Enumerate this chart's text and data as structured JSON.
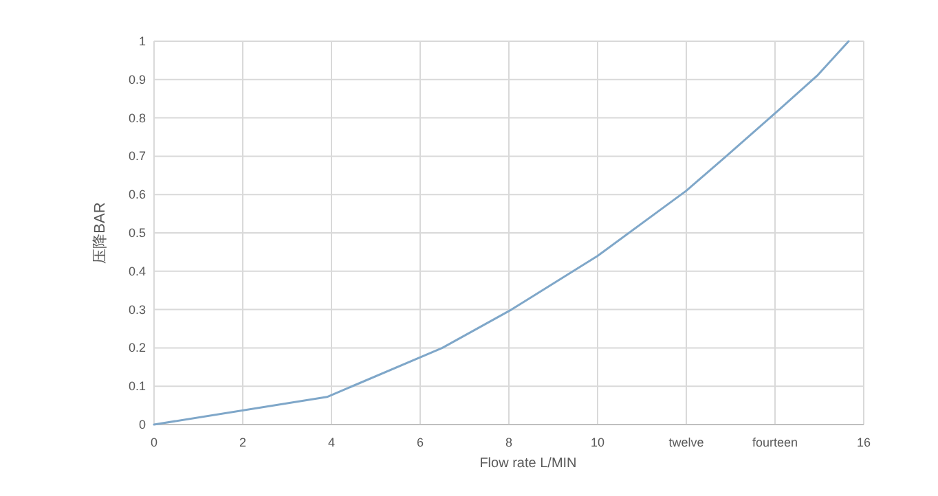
{
  "chart_data": {
    "type": "line",
    "xlabel": "Flow rate L/MIN",
    "ylabel": "压降BAR",
    "x": [
      0,
      3.9,
      6.5,
      8.06,
      10,
      12,
      12.9,
      14.08,
      14.95,
      15.66
    ],
    "series": [
      {
        "color": "#7fa7c9",
        "values": [
          0,
          0.072,
          0.2,
          0.3,
          0.44,
          0.61,
          0.7,
          0.82,
          0.91,
          1.0
        ]
      }
    ],
    "xlim": [
      0,
      16
    ],
    "ylim": [
      0,
      1
    ],
    "xticks": [
      0,
      2,
      4,
      6,
      8,
      10,
      {
        "value": 12,
        "label": "twelve"
      },
      {
        "value": 14,
        "label": "fourteen"
      },
      16
    ],
    "yticks": [
      0,
      0.1,
      0.2,
      0.3,
      0.4,
      0.5,
      0.6,
      0.7,
      0.8,
      0.9,
      1
    ],
    "grid": true,
    "marker": "none",
    "line_style": "solid"
  }
}
